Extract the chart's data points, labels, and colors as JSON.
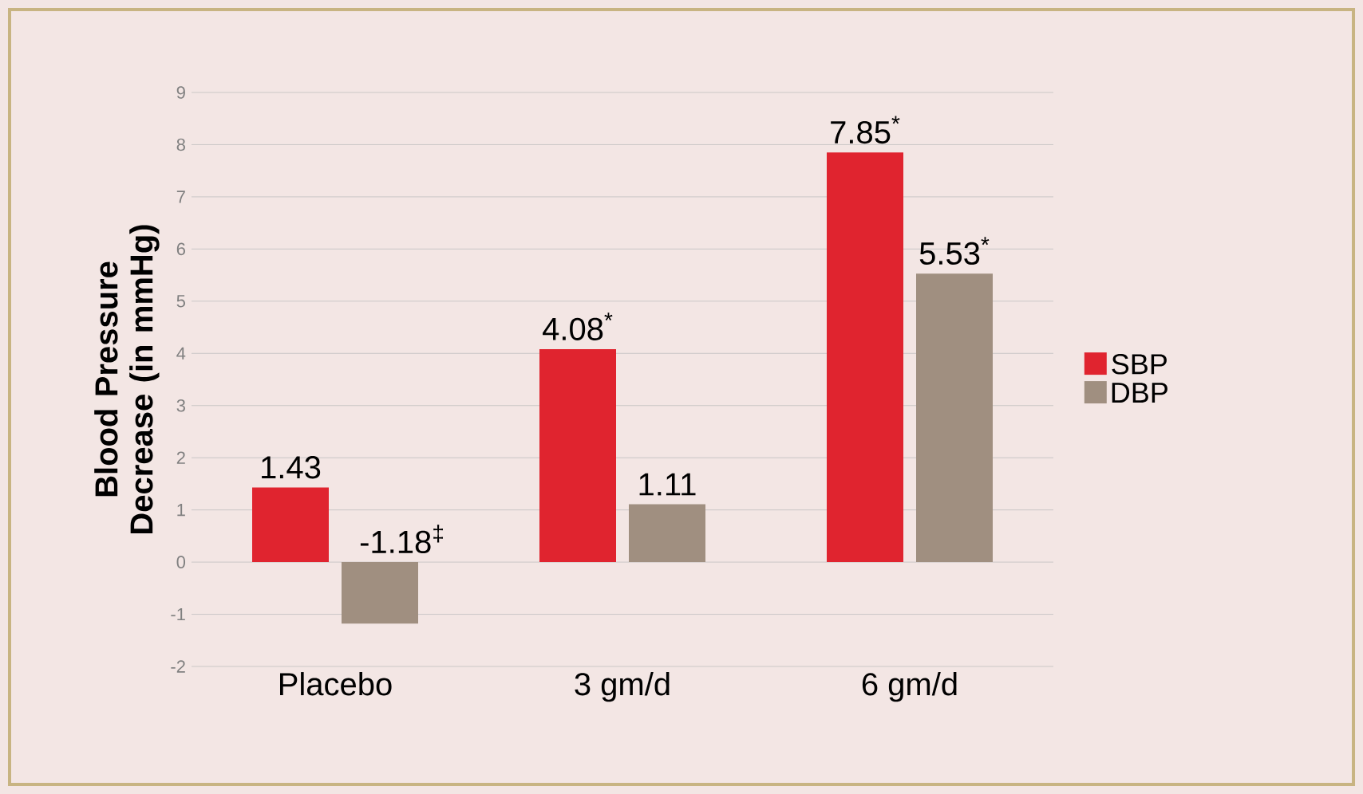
{
  "chart_data": {
    "type": "bar",
    "ylabel": "Blood Pressure Decrease (in mmHg)",
    "categories": [
      "Placebo",
      "3 gm/d",
      "6 gm/d"
    ],
    "series": [
      {
        "name": "SBP",
        "color": "#e0242f",
        "values": [
          1.43,
          4.08,
          7.85
        ],
        "value_labels": [
          "1.43",
          "4.08$^{*}$",
          "7.85$^{*}$"
        ]
      },
      {
        "name": "DBP",
        "color": "#a08f80",
        "values": [
          -1.18,
          1.11,
          5.53
        ],
        "value_labels": [
          "-1.18$^{‡}$",
          "1.11",
          "5.53$^{*}$"
        ]
      }
    ],
    "ylim": [
      -2,
      9
    ],
    "yticks": [
      -2,
      -1,
      0,
      1,
      2,
      3,
      4,
      5,
      6,
      7,
      8,
      9
    ],
    "grid": "y",
    "legend": "right"
  }
}
